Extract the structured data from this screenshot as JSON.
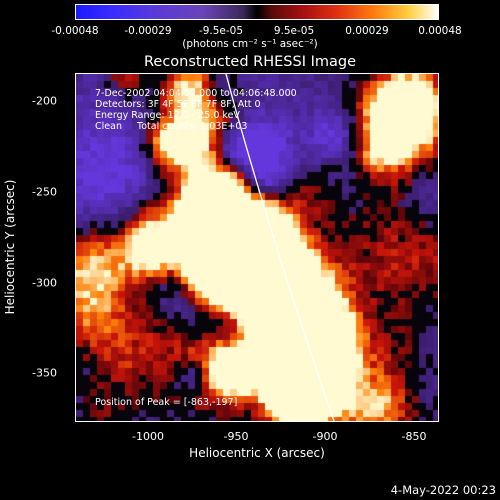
{
  "colorbar": {
    "ticks": [
      "-0.00048",
      "-0.00029",
      "-9.5e-05",
      "9.5e-05",
      "0.00029",
      "0.00048"
    ],
    "units": "(photons cm⁻² s⁻¹ asec⁻²)"
  },
  "title": "Reconstructed RHESSI Image",
  "info": {
    "time": "7-Dec-2002 04:04:52.000 to 04:06:48.000",
    "detectors": "Detectors: 3F 4F 5F 6F 7F 8F, Att 0",
    "energy": "Energy Range: 12.0 - 25.0 keV",
    "method": "Clean     Total counts: 1.03E+03"
  },
  "peak": "Position of Peak = [-863,-197]",
  "axes": {
    "xlabel": "Heliocentric X (arcsec)",
    "ylabel": "Heliocentric Y (arcsec)",
    "xticks": [
      "-1000",
      "-950",
      "-900",
      "-850"
    ],
    "yticks": [
      "-200",
      "-250",
      "-300",
      "-350"
    ]
  },
  "timestamp": "4-May-2022 00:23"
}
